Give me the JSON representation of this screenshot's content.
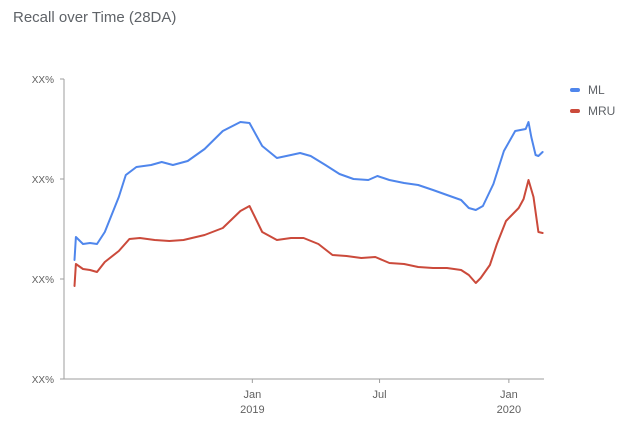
{
  "chart_data": {
    "type": "line",
    "title": "Recall over Time (28DA)",
    "xlabel": "",
    "ylabel": "",
    "y_tick_labels": [
      "XX%",
      "XX%",
      "XX%",
      "XX%"
    ],
    "x_ticks": [
      {
        "date": "2019-01-01",
        "month": "Jan",
        "year": "2019"
      },
      {
        "date": "2019-07-01",
        "month": "Jul",
        "year": ""
      },
      {
        "date": "2020-01-01",
        "month": "Jan",
        "year": "2020"
      }
    ],
    "xlim": [
      "2018-04-08",
      "2020-02-20"
    ],
    "ylim": [
      0,
      3
    ],
    "grid": false,
    "legend_position": "top-right",
    "series": [
      {
        "name": "ML",
        "color": "#4f86ec",
        "points": [
          [
            "2018-04-23",
            1.19
          ],
          [
            "2018-04-25",
            1.42
          ],
          [
            "2018-05-05",
            1.35
          ],
          [
            "2018-05-15",
            1.36
          ],
          [
            "2018-05-25",
            1.35
          ],
          [
            "2018-06-05",
            1.47
          ],
          [
            "2018-06-25",
            1.82
          ],
          [
            "2018-07-05",
            2.04
          ],
          [
            "2018-07-20",
            2.12
          ],
          [
            "2018-08-10",
            2.14
          ],
          [
            "2018-08-25",
            2.17
          ],
          [
            "2018-09-10",
            2.14
          ],
          [
            "2018-10-01",
            2.18
          ],
          [
            "2018-10-25",
            2.3
          ],
          [
            "2018-11-20",
            2.48
          ],
          [
            "2018-12-15",
            2.57
          ],
          [
            "2018-12-28",
            2.56
          ],
          [
            "2019-01-15",
            2.33
          ],
          [
            "2019-02-05",
            2.21
          ],
          [
            "2019-02-25",
            2.24
          ],
          [
            "2019-03-10",
            2.26
          ],
          [
            "2019-03-25",
            2.23
          ],
          [
            "2019-04-15",
            2.14
          ],
          [
            "2019-05-05",
            2.05
          ],
          [
            "2019-05-25",
            2.0
          ],
          [
            "2019-06-15",
            1.99
          ],
          [
            "2019-06-28",
            2.03
          ],
          [
            "2019-07-15",
            1.99
          ],
          [
            "2019-08-05",
            1.96
          ],
          [
            "2019-08-25",
            1.94
          ],
          [
            "2019-09-15",
            1.89
          ],
          [
            "2019-10-05",
            1.84
          ],
          [
            "2019-10-25",
            1.79
          ],
          [
            "2019-11-05",
            1.71
          ],
          [
            "2019-11-15",
            1.69
          ],
          [
            "2019-11-25",
            1.73
          ],
          [
            "2019-12-10",
            1.95
          ],
          [
            "2019-12-25",
            2.28
          ],
          [
            "2020-01-10",
            2.48
          ],
          [
            "2020-01-25",
            2.5
          ],
          [
            "2020-01-29",
            2.57
          ],
          [
            "2020-02-02",
            2.42
          ],
          [
            "2020-02-08",
            2.24
          ],
          [
            "2020-02-12",
            2.23
          ],
          [
            "2020-02-18",
            2.27
          ]
        ]
      },
      {
        "name": "MRU",
        "color": "#cb4a3b",
        "points": [
          [
            "2018-04-23",
            0.93
          ],
          [
            "2018-04-25",
            1.15
          ],
          [
            "2018-05-05",
            1.1
          ],
          [
            "2018-05-15",
            1.09
          ],
          [
            "2018-05-25",
            1.07
          ],
          [
            "2018-06-05",
            1.17
          ],
          [
            "2018-06-25",
            1.28
          ],
          [
            "2018-07-10",
            1.4
          ],
          [
            "2018-07-25",
            1.41
          ],
          [
            "2018-08-15",
            1.39
          ],
          [
            "2018-09-05",
            1.38
          ],
          [
            "2018-09-25",
            1.39
          ],
          [
            "2018-10-25",
            1.44
          ],
          [
            "2018-11-20",
            1.51
          ],
          [
            "2018-12-15",
            1.68
          ],
          [
            "2018-12-28",
            1.73
          ],
          [
            "2019-01-15",
            1.47
          ],
          [
            "2019-02-05",
            1.39
          ],
          [
            "2019-02-25",
            1.41
          ],
          [
            "2019-03-15",
            1.41
          ],
          [
            "2019-04-05",
            1.35
          ],
          [
            "2019-04-25",
            1.24
          ],
          [
            "2019-05-15",
            1.23
          ],
          [
            "2019-06-05",
            1.21
          ],
          [
            "2019-06-25",
            1.22
          ],
          [
            "2019-07-15",
            1.16
          ],
          [
            "2019-08-05",
            1.15
          ],
          [
            "2019-08-25",
            1.12
          ],
          [
            "2019-09-15",
            1.11
          ],
          [
            "2019-10-05",
            1.11
          ],
          [
            "2019-10-25",
            1.09
          ],
          [
            "2019-11-05",
            1.04
          ],
          [
            "2019-11-15",
            0.96
          ],
          [
            "2019-11-22",
            1.01
          ],
          [
            "2019-12-05",
            1.14
          ],
          [
            "2019-12-15",
            1.35
          ],
          [
            "2019-12-28",
            1.58
          ],
          [
            "2020-01-15",
            1.71
          ],
          [
            "2020-01-22",
            1.8
          ],
          [
            "2020-01-29",
            1.99
          ],
          [
            "2020-02-05",
            1.82
          ],
          [
            "2020-02-12",
            1.47
          ],
          [
            "2020-02-18",
            1.46
          ]
        ]
      }
    ]
  }
}
